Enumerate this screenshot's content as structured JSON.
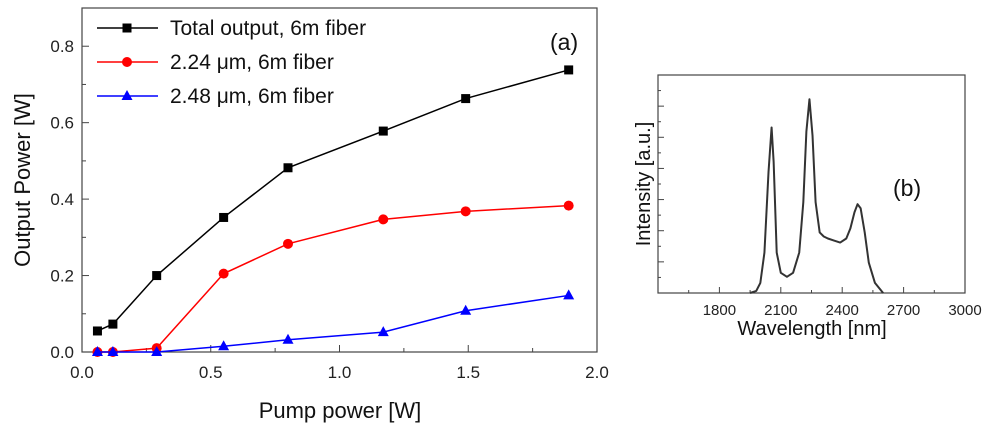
{
  "chart_data": [
    {
      "panel": "(a)",
      "type": "line",
      "xlabel": "Pump power [W]",
      "ylabel": "Output Power [W]",
      "xlim": [
        0.0,
        2.0
      ],
      "ylim": [
        0.0,
        0.9
      ],
      "xticks": [
        "0.0",
        "0.5",
        "1.0",
        "1.5",
        "2.0"
      ],
      "yticks": [
        "0.0",
        "0.2",
        "0.4",
        "0.6",
        "0.8"
      ],
      "legend_position": "top-left",
      "series": [
        {
          "name": "Total output, 6m fiber",
          "color": "#000000",
          "marker": "square",
          "x": [
            0.06,
            0.12,
            0.29,
            0.55,
            0.8,
            1.17,
            1.49,
            1.89
          ],
          "y": [
            0.055,
            0.073,
            0.2,
            0.352,
            0.482,
            0.578,
            0.663,
            0.738
          ]
        },
        {
          "name": "2.24 μm, 6m fiber",
          "color": "#ff0000",
          "marker": "circle",
          "x": [
            0.06,
            0.12,
            0.29,
            0.55,
            0.8,
            1.17,
            1.49,
            1.89
          ],
          "y": [
            0.0,
            0.0,
            0.01,
            0.205,
            0.283,
            0.347,
            0.368,
            0.383
          ]
        },
        {
          "name": "2.48 μm, 6m fiber",
          "color": "#0000ff",
          "marker": "triangle",
          "x": [
            0.06,
            0.12,
            0.29,
            0.55,
            0.8,
            1.17,
            1.49,
            1.89
          ],
          "y": [
            0.0,
            0.0,
            0.0,
            0.015,
            0.032,
            0.052,
            0.108,
            0.148
          ]
        }
      ]
    },
    {
      "panel": "(b)",
      "type": "line",
      "xlabel": "Wavelength [nm]",
      "ylabel": "Intensity [a.u.]",
      "xlim": [
        1500,
        3000
      ],
      "ylim": [
        0,
        1.08
      ],
      "xticks": [
        "1800",
        "2100",
        "2400",
        "2700",
        "3000"
      ],
      "series": [
        {
          "color": "#333333",
          "x": [
            1950,
            1980,
            2000,
            2020,
            2040,
            2055,
            2065,
            2080,
            2100,
            2130,
            2160,
            2190,
            2210,
            2225,
            2240,
            2255,
            2270,
            2290,
            2310,
            2330,
            2360,
            2390,
            2420,
            2440,
            2460,
            2475,
            2490,
            2510,
            2530,
            2560,
            2600
          ],
          "y": [
            0.0,
            0.01,
            0.05,
            0.2,
            0.6,
            0.82,
            0.65,
            0.2,
            0.1,
            0.08,
            0.1,
            0.2,
            0.45,
            0.8,
            0.96,
            0.78,
            0.45,
            0.3,
            0.28,
            0.27,
            0.26,
            0.25,
            0.27,
            0.32,
            0.4,
            0.44,
            0.42,
            0.3,
            0.15,
            0.05,
            0.0
          ]
        }
      ]
    }
  ]
}
